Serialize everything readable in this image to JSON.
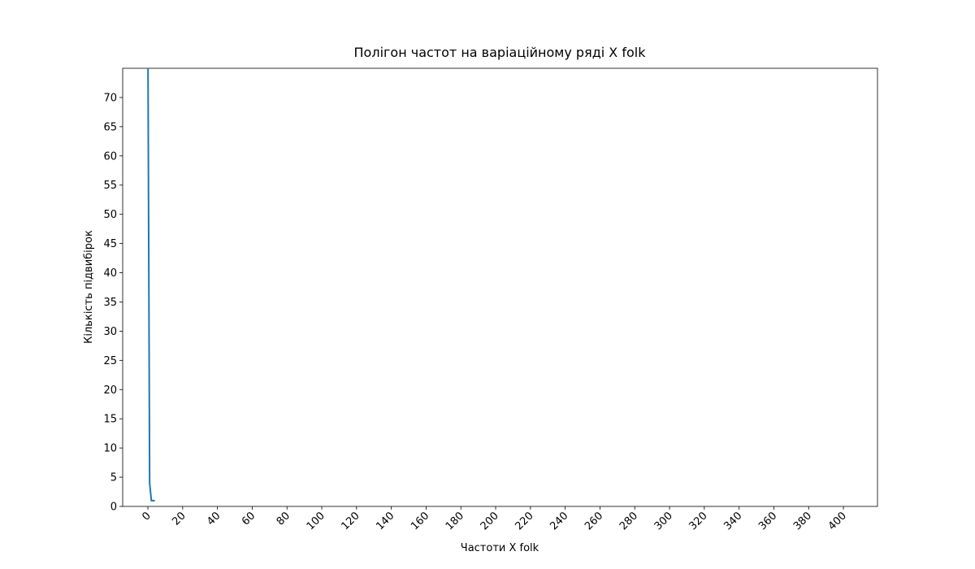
{
  "chart_data": {
    "type": "line",
    "title": "Полігон частот на варіаційному ряді X folk",
    "x_label": "Частоти X folk",
    "y_label": "Кількість підвибірок",
    "x": [
      0,
      1,
      2,
      3,
      4
    ],
    "series": [
      {
        "name": "X folk",
        "color": "#1f77b4",
        "values": [
          80,
          4,
          1,
          1,
          1
        ]
      }
    ],
    "xlim": [
      -14.5,
      419.6
    ],
    "ylim": [
      0,
      75
    ],
    "xticks": [
      0,
      20,
      40,
      60,
      80,
      100,
      120,
      140,
      160,
      180,
      200,
      220,
      240,
      260,
      280,
      300,
      320,
      340,
      360,
      380,
      400
    ],
    "yticks": [
      0,
      5,
      10,
      15,
      20,
      25,
      30,
      35,
      40,
      45,
      50,
      55,
      60,
      65,
      70
    ],
    "grid": false
  }
}
